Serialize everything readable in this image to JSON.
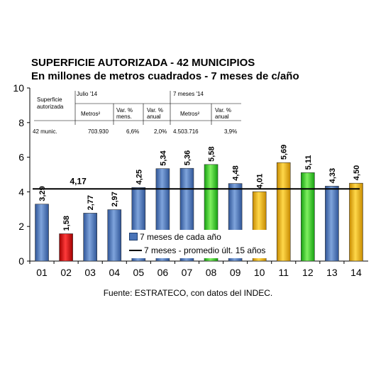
{
  "title": "SUPERFICIE AUTORIZADA - 42 MUNICIPIOS",
  "subtitle": "En millones de metros cuadrados - 7 meses de c/año",
  "source": "Fuente: ESTRATECO, con datos del INDEC.",
  "table": {
    "row_header_1": "Superficie",
    "row_header_2": "autorizada",
    "group1": "Julio '14",
    "group2": "7 meses '14",
    "col_metros": "Metros²",
    "col_var_mens_1": "Var. %",
    "col_var_mens_2": "mens.",
    "col_var_anual_1": "Var. %",
    "col_var_anual_2": "anual",
    "row_label": "42 munic.",
    "jul_metros": "703.930",
    "jul_var_mens": "6,6%",
    "jul_var_anual": "2,0%",
    "m7_metros": "4.503.716",
    "m7_var_anual": "3,9%"
  },
  "legend": {
    "bars": "7 meses de cada año",
    "line": "7 meses - promedio últ. 15 años"
  },
  "colors": {
    "blue": "#4a74b8",
    "red": "#d01010",
    "green": "#22cc1a",
    "yellow": "#f2b705"
  },
  "chart_data": {
    "type": "bar",
    "categories": [
      "01",
      "02",
      "03",
      "04",
      "05",
      "06",
      "07",
      "08",
      "09",
      "10",
      "11",
      "12",
      "13",
      "14"
    ],
    "values": [
      3.29,
      1.58,
      2.77,
      2.97,
      4.25,
      5.34,
      5.36,
      5.58,
      4.48,
      4.01,
      5.69,
      5.11,
      4.33,
      4.5
    ],
    "value_labels": [
      "3,29",
      "1,58",
      "2,77",
      "2,97",
      "4,25",
      "5,34",
      "5,36",
      "5,58",
      "4,48",
      "4,01",
      "5,69",
      "5,11",
      "4,33",
      "4,50"
    ],
    "bar_colors": [
      "blue",
      "red",
      "blue",
      "blue",
      "blue",
      "blue",
      "blue",
      "green",
      "blue",
      "yellow",
      "yellow",
      "green",
      "blue",
      "yellow"
    ],
    "reference_line": {
      "name": "7 meses - promedio últ. 15 años",
      "value": 4.17,
      "label": "4,17"
    },
    "ylim": [
      0,
      10
    ],
    "yticks": [
      0,
      2,
      4,
      6,
      8,
      10
    ],
    "grid": false,
    "legend_position": "bottom-center"
  }
}
